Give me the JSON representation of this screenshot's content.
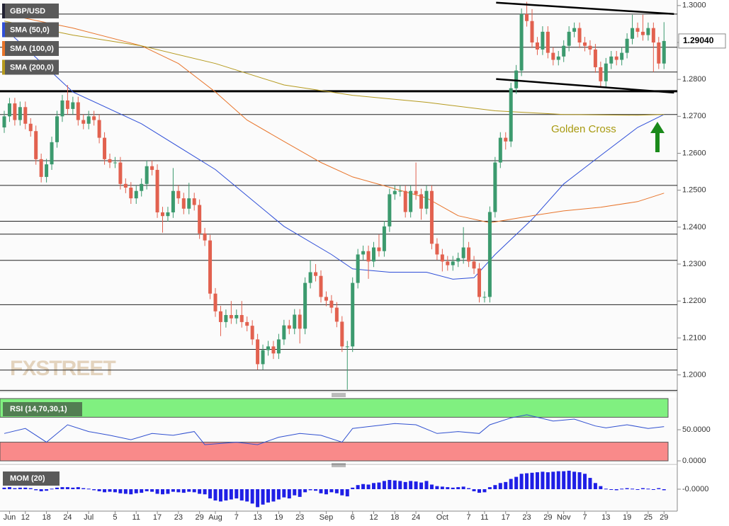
{
  "chart_data": [
    {
      "type": "candlestick",
      "categories": [
        null,
        "Jun",
        null,
        null,
        "12",
        null,
        null,
        null,
        "18",
        null,
        null,
        null,
        "24",
        null,
        null,
        null,
        "Jul",
        null,
        null,
        null,
        null,
        "5",
        null,
        null,
        null,
        "11",
        null,
        null,
        null,
        "17",
        null,
        null,
        null,
        "23",
        null,
        null,
        null,
        "29",
        null,
        null,
        "Aug",
        null,
        null,
        null,
        "7",
        null,
        null,
        null,
        "13",
        null,
        null,
        null,
        "19",
        null,
        null,
        null,
        "23",
        null,
        null,
        null,
        null,
        "Sep",
        null,
        null,
        null,
        null,
        "6",
        null,
        null,
        null,
        "12",
        null,
        null,
        null,
        "18",
        null,
        null,
        null,
        "24",
        null,
        null,
        null,
        null,
        "Oct",
        null,
        null,
        null,
        null,
        "7",
        null,
        null,
        "11",
        null,
        null,
        null,
        "17",
        null,
        null,
        null,
        "23",
        null,
        null,
        null,
        "29",
        null,
        null,
        "Nov",
        null,
        null,
        null,
        "7",
        null,
        null,
        null,
        "13",
        null,
        null,
        null,
        "19",
        null,
        null,
        null,
        "25",
        null,
        null,
        "29"
      ],
      "ylim": [
        1.1955,
        1.3015
      ],
      "yticks": [
        {
          "value": 1.3,
          "label": "1.3000"
        },
        {
          "value": 1.29,
          "label": "1.2900"
        },
        {
          "value": 1.28,
          "label": "1.2800"
        },
        {
          "value": 1.27,
          "label": "1.2700"
        },
        {
          "value": 1.26,
          "label": "1.2600"
        },
        {
          "value": 1.25,
          "label": "1.2500"
        },
        {
          "value": 1.24,
          "label": "1.2400"
        },
        {
          "value": 1.23,
          "label": "1.2300"
        },
        {
          "value": 1.22,
          "label": "1.2200"
        },
        {
          "value": 1.21,
          "label": "1.2100"
        },
        {
          "value": 1.2,
          "label": "1.2000"
        }
      ],
      "series": [
        {
          "name": "GBP/USD",
          "up_color": "#3c9a6e",
          "down_color": "#e2614f",
          "open": [
            1.267,
            1.27,
            1.2735,
            1.269,
            1.2725,
            1.268,
            1.266,
            1.2584,
            1.2536,
            1.257,
            1.263,
            1.27,
            1.2743,
            1.272,
            1.2738,
            1.269,
            1.268,
            1.27,
            1.269,
            1.2642,
            1.2584,
            1.2575,
            1.2575,
            1.2517,
            1.2507,
            1.2478,
            1.2498,
            1.2517,
            1.2565,
            1.2555,
            1.244,
            1.243,
            1.244,
            1.2498,
            1.2478,
            1.245,
            1.2478,
            1.246,
            1.2383,
            1.2364,
            1.222,
            1.2172,
            1.2143,
            1.2162,
            1.2153,
            1.2162,
            1.2143,
            1.2133,
            1.2096,
            1.2029,
            1.2067,
            1.2077,
            1.2058,
            1.2096,
            1.2134,
            1.2125,
            1.2163,
            1.2125,
            1.2249,
            1.2278,
            1.2268,
            1.2211,
            1.2201,
            1.2182,
            1.2144,
            1.2077,
            1.2077,
            1.2249,
            1.2326,
            1.2335,
            1.2307,
            1.2345,
            1.2335,
            1.2402,
            1.2489,
            1.2498,
            1.2498,
            1.2441,
            1.2498,
            1.2489,
            1.245,
            1.2498,
            1.2355,
            1.2326,
            1.2307,
            1.2297,
            1.2307,
            1.2316,
            1.2345,
            1.2307,
            1.2288,
            1.2211,
            1.2211,
            1.2441,
            1.2575,
            1.2642,
            1.2632,
            1.2776,
            1.2824,
            1.2977,
            1.2958,
            1.29,
            1.2881,
            1.2929,
            1.2872,
            1.2853,
            1.2862,
            1.2891,
            1.2929,
            1.2939,
            1.29,
            1.2891,
            1.2881,
            1.2833,
            1.2795,
            1.2843,
            1.2862,
            1.2853,
            1.2872,
            1.291,
            1.2939,
            1.2929,
            1.292,
            1.2939,
            1.29,
            1.2843
          ],
          "high": [
            1.2715,
            1.275,
            1.275,
            1.274,
            1.274,
            1.2695,
            1.2675,
            1.2599,
            1.2585,
            1.2645,
            1.2715,
            1.2758,
            1.2785,
            1.2753,
            1.2753,
            1.2705,
            1.2715,
            1.2715,
            1.2705,
            1.2657,
            1.2599,
            1.259,
            1.259,
            1.2532,
            1.2522,
            1.2513,
            1.2532,
            1.258,
            1.258,
            1.257,
            1.2455,
            1.2455,
            1.256,
            1.2513,
            1.2493,
            1.252,
            1.2493,
            1.2475,
            1.2398,
            1.2379,
            1.2235,
            1.2187,
            1.2177,
            1.22,
            1.2177,
            1.22,
            1.2158,
            1.2148,
            1.2111,
            1.2082,
            1.2092,
            1.2092,
            1.2111,
            1.2149,
            1.2149,
            1.2178,
            1.2178,
            1.2264,
            1.231,
            1.23,
            1.2283,
            1.2226,
            1.2216,
            1.2197,
            1.2159,
            1.2092,
            1.2264,
            1.2341,
            1.235,
            1.235,
            1.236,
            1.238,
            1.2417,
            1.2504,
            1.2513,
            1.2513,
            1.2513,
            1.2513,
            1.2575,
            1.2504,
            1.2513,
            1.2513,
            1.237,
            1.2341,
            1.2322,
            1.2322,
            1.2331,
            1.24,
            1.236,
            1.2322,
            1.2303,
            1.2226,
            1.2456,
            1.259,
            1.2657,
            1.2657,
            1.2791,
            1.2839,
            1.2992,
            1.301,
            1.299,
            1.2915,
            1.2944,
            1.2944,
            1.2887,
            1.2877,
            1.2906,
            1.2944,
            1.2954,
            1.2954,
            1.2915,
            1.2906,
            1.2896,
            1.2848,
            1.2858,
            1.2877,
            1.2877,
            1.2887,
            1.2925,
            1.2975,
            1.2954,
            1.2975,
            1.2954,
            1.2954,
            1.2915,
            1.2955
          ],
          "low": [
            1.2655,
            1.2685,
            1.2675,
            1.2675,
            1.2665,
            1.2645,
            1.2569,
            1.2521,
            1.2521,
            1.2555,
            1.2615,
            1.2685,
            1.2705,
            1.2705,
            1.2675,
            1.2665,
            1.2665,
            1.2675,
            1.2627,
            1.2569,
            1.256,
            1.256,
            1.2502,
            1.2492,
            1.2463,
            1.2463,
            1.2483,
            1.2502,
            1.254,
            1.2425,
            1.2385,
            1.2415,
            1.2425,
            1.2463,
            1.2435,
            1.2435,
            1.2445,
            1.2368,
            1.2349,
            1.2205,
            1.2157,
            1.2105,
            1.2128,
            1.2138,
            1.2138,
            1.2128,
            1.2118,
            1.2081,
            1.2014,
            1.2014,
            1.2052,
            1.2043,
            1.2043,
            1.2081,
            1.211,
            1.211,
            1.2085,
            1.211,
            1.2234,
            1.2253,
            1.2196,
            1.2186,
            1.2167,
            1.2129,
            1.2062,
            1.196,
            1.2062,
            1.2234,
            1.2311,
            1.226,
            1.2292,
            1.232,
            1.232,
            1.2387,
            1.2474,
            1.2483,
            1.2426,
            1.2426,
            1.2474,
            1.242,
            1.2435,
            1.234,
            1.2311,
            1.228,
            1.2282,
            1.2282,
            1.2292,
            1.2301,
            1.2292,
            1.2273,
            1.2196,
            1.2196,
            1.2196,
            1.2426,
            1.256,
            1.261,
            1.2617,
            1.2761,
            1.2809,
            1.2943,
            1.2885,
            1.2866,
            1.2866,
            1.2857,
            1.2838,
            1.2838,
            1.2847,
            1.2876,
            1.2914,
            1.2885,
            1.2876,
            1.2866,
            1.2818,
            1.278,
            1.278,
            1.2828,
            1.2838,
            1.2838,
            1.2857,
            1.2895,
            1.2914,
            1.2905,
            1.2905,
            1.282,
            1.2828,
            1.2828
          ],
          "close": [
            1.27,
            1.2735,
            1.269,
            1.2725,
            1.268,
            1.266,
            1.2584,
            1.2536,
            1.257,
            1.263,
            1.27,
            1.2743,
            1.272,
            1.2738,
            1.269,
            1.268,
            1.27,
            1.269,
            1.2642,
            1.2584,
            1.2575,
            1.2575,
            1.2517,
            1.2507,
            1.2478,
            1.2498,
            1.2517,
            1.2565,
            1.2555,
            1.244,
            1.243,
            1.244,
            1.2498,
            1.2478,
            1.245,
            1.2478,
            1.246,
            1.2383,
            1.2364,
            1.222,
            1.2172,
            1.2143,
            1.2162,
            1.2153,
            1.2162,
            1.2143,
            1.2133,
            1.2096,
            1.2029,
            1.2067,
            1.2077,
            1.2058,
            1.2096,
            1.2134,
            1.2125,
            1.2163,
            1.2125,
            1.2249,
            1.2278,
            1.2268,
            1.2211,
            1.2201,
            1.2182,
            1.2144,
            1.2077,
            1.2077,
            1.2249,
            1.2326,
            1.2335,
            1.2307,
            1.2345,
            1.2335,
            1.2402,
            1.2489,
            1.2498,
            1.2498,
            1.2441,
            1.2498,
            1.2489,
            1.245,
            1.2498,
            1.2355,
            1.2326,
            1.2307,
            1.2297,
            1.2307,
            1.2316,
            1.2345,
            1.2307,
            1.2288,
            1.2211,
            1.2211,
            1.2441,
            1.2575,
            1.2642,
            1.2632,
            1.2776,
            1.2824,
            1.2977,
            1.2958,
            1.29,
            1.2881,
            1.2929,
            1.2872,
            1.2853,
            1.2862,
            1.2891,
            1.2929,
            1.2939,
            1.29,
            1.2891,
            1.2881,
            1.2833,
            1.2795,
            1.2843,
            1.2862,
            1.2853,
            1.2872,
            1.291,
            1.2939,
            1.2929,
            1.292,
            1.2939,
            1.29,
            1.2843,
            1.2904
          ]
        }
      ],
      "lines": [
        {
          "name": "SMA (50,0)",
          "color": "#2f4fd8",
          "x": [
            0,
            13,
            26,
            40,
            53,
            62,
            66,
            73,
            80,
            85,
            89,
            93,
            100,
            106,
            113,
            120,
            125
          ],
          "values": [
            1.2939,
            1.2766,
            1.268,
            1.2556,
            1.2402,
            1.2326,
            1.2287,
            1.2278,
            1.2278,
            1.2259,
            1.2263,
            1.2326,
            1.2421,
            1.2517,
            1.2594,
            1.267,
            1.2705
          ]
        },
        {
          "name": "SMA (100,0)",
          "color": "#e8742a",
          "x": [
            0,
            13,
            26,
            33,
            40,
            46,
            53,
            60,
            66,
            73,
            80,
            86,
            92,
            100,
            106,
            113,
            120,
            125
          ],
          "values": [
            1.2977,
            1.2939,
            1.2891,
            1.2843,
            1.2766,
            1.269,
            1.2632,
            1.2575,
            1.2536,
            1.2508,
            1.2479,
            1.2431,
            1.2412,
            1.2431,
            1.2444,
            1.2454,
            1.2469,
            1.2492
          ]
        },
        {
          "name": "SMA (200,0)",
          "color": "#b59a1e",
          "x": [
            0,
            13,
            26,
            40,
            53,
            66,
            80,
            93,
            106,
            120,
            125
          ],
          "values": [
            1.2958,
            1.292,
            1.2891,
            1.2843,
            1.2785,
            1.2757,
            1.2738,
            1.2715,
            1.2705,
            1.2703,
            1.2705
          ]
        }
      ],
      "levels": [
        1.2977,
        1.2887,
        1.282,
        1.2705,
        1.258,
        1.2513,
        1.2416,
        1.2381,
        1.231,
        1.219,
        1.2069,
        1.2013,
        1.1958
      ],
      "bold_level": 1.2768,
      "trendlines": [
        {
          "x": [
            93.2,
            126.9
          ],
          "values": [
            1.3008,
            1.2977
          ]
        },
        {
          "x": [
            93.2,
            126.9
          ],
          "values": [
            1.2801,
            1.2764
          ]
        }
      ],
      "annotation": "Golden Cross",
      "annotation_color": "#a89a10",
      "last_price": {
        "value": 1.2904,
        "label": "1.29040"
      },
      "watermark": "FXSTREET"
    },
    {
      "type": "line",
      "title": "RSI (14,70,30,1)",
      "ylim": [
        0,
        100
      ],
      "yticks": [
        {
          "value": 50,
          "label": "50.0000"
        },
        {
          "value": 0,
          "label": "0.0000"
        }
      ],
      "upper_band": 70,
      "upper_band_color": "#80f080",
      "lower_band": 30,
      "lower_band_color": "#f98a8a",
      "series": [
        {
          "color": "#3050d0",
          "x": [
            0,
            4,
            8,
            12,
            16,
            20,
            24,
            28,
            32,
            36,
            38,
            44,
            48,
            52,
            56,
            60,
            64,
            66,
            70,
            74,
            78,
            82,
            86,
            90,
            92,
            96,
            99,
            104,
            108,
            112,
            114,
            118,
            122,
            125
          ],
          "values": [
            44,
            52,
            30,
            58,
            47,
            41,
            34,
            44,
            41,
            47,
            26,
            30,
            26,
            38,
            44,
            41,
            30,
            52,
            56,
            60,
            58,
            44,
            47,
            44,
            58,
            69,
            74,
            64,
            67,
            56,
            53,
            58,
            52,
            55
          ]
        }
      ]
    },
    {
      "type": "bar",
      "title": "MOM (20)",
      "ylim": [
        -0.04,
        0.04
      ],
      "yticks": [
        {
          "value": 0,
          "label": "-0.0000"
        }
      ],
      "color": "#1f1fe6",
      "values": [
        0.003,
        0.004,
        0.002,
        0.003,
        0.003,
        0.002,
        -0.002,
        -0.004,
        -0.003,
        0.001,
        0.003,
        0.004,
        0.004,
        0.003,
        0.004,
        0.002,
        0.001,
        -0.002,
        -0.004,
        -0.006,
        -0.005,
        -0.006,
        -0.008,
        -0.009,
        -0.01,
        -0.008,
        -0.007,
        -0.004,
        -0.005,
        -0.009,
        -0.01,
        -0.009,
        -0.005,
        -0.006,
        -0.007,
        -0.005,
        -0.006,
        -0.009,
        -0.01,
        -0.018,
        -0.022,
        -0.024,
        -0.022,
        -0.02,
        -0.018,
        -0.022,
        -0.024,
        -0.028,
        -0.035,
        -0.03,
        -0.026,
        -0.024,
        -0.02,
        -0.016,
        -0.018,
        -0.012,
        -0.015,
        -0.006,
        -0.002,
        -0.003,
        -0.008,
        -0.01,
        -0.006,
        -0.008,
        -0.012,
        -0.014,
        0.003,
        0.008,
        0.01,
        0.009,
        0.012,
        0.013,
        0.016,
        0.018,
        0.017,
        0.016,
        0.014,
        0.016,
        0.015,
        0.013,
        0.016,
        0.009,
        0.006,
        0.005,
        0.004,
        0.003,
        0.004,
        0.005,
        0.002,
        -0.004,
        -0.007,
        -0.006,
        0.004,
        0.008,
        0.012,
        0.014,
        0.02,
        0.024,
        0.03,
        0.031,
        0.032,
        0.033,
        0.034,
        0.033,
        0.034,
        0.035,
        0.035,
        0.036,
        0.034,
        0.033,
        0.03,
        0.022,
        0.012,
        0.006,
        0.001,
        -0.001,
        -0.002,
        0.001,
        0.002,
        0.001,
        -0.001,
        0.002,
        0.001,
        -0.001,
        0.002,
        -0.002
      ]
    }
  ]
}
